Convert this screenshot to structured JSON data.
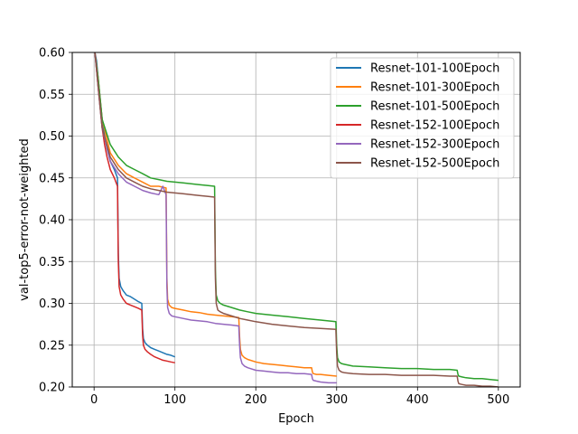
{
  "chart_data": {
    "type": "line",
    "title": "",
    "xlabel": "Epoch",
    "ylabel": "val-top5-error-not-weighted",
    "xlim": [
      -27,
      527
    ],
    "ylim": [
      0.2,
      0.6
    ],
    "xticks": [
      0,
      100,
      200,
      300,
      400,
      500
    ],
    "yticks": [
      0.2,
      0.25,
      0.3,
      0.35,
      0.4,
      0.45,
      0.5,
      0.55,
      0.6
    ],
    "xtick_labels": [
      "0",
      "100",
      "200",
      "300",
      "400",
      "500"
    ],
    "ytick_labels": [
      "0.20",
      "0.25",
      "0.30",
      "0.35",
      "0.40",
      "0.45",
      "0.50",
      "0.55",
      "0.60"
    ],
    "grid": true,
    "legend_position": "top-right",
    "series": [
      {
        "name": "Resnet-101-100Epoch",
        "color": "#1f77b4",
        "x": [
          1,
          3,
          5,
          8,
          10,
          13,
          16,
          20,
          25,
          29,
          30,
          31,
          33,
          36,
          40,
          45,
          50,
          55,
          59,
          60,
          61,
          63,
          66,
          70,
          75,
          80,
          85,
          90,
          95,
          100
        ],
        "y": [
          0.6,
          0.59,
          0.57,
          0.54,
          0.52,
          0.5,
          0.485,
          0.47,
          0.46,
          0.45,
          0.36,
          0.33,
          0.32,
          0.315,
          0.31,
          0.308,
          0.305,
          0.302,
          0.3,
          0.27,
          0.258,
          0.253,
          0.25,
          0.247,
          0.245,
          0.243,
          0.241,
          0.239,
          0.238,
          0.236
        ]
      },
      {
        "name": "Resnet-101-300Epoch",
        "color": "#ff7f0e",
        "x": [
          1,
          5,
          10,
          20,
          30,
          40,
          50,
          60,
          70,
          80,
          89,
          90,
          91,
          93,
          96,
          100,
          110,
          120,
          130,
          140,
          150,
          160,
          170,
          179,
          180,
          181,
          183,
          186,
          190,
          200,
          210,
          220,
          230,
          240,
          250,
          260,
          269,
          270,
          271,
          275,
          280,
          290,
          300
        ],
        "y": [
          0.6,
          0.57,
          0.52,
          0.48,
          0.465,
          0.455,
          0.45,
          0.445,
          0.44,
          0.44,
          0.438,
          0.33,
          0.305,
          0.298,
          0.295,
          0.294,
          0.292,
          0.29,
          0.289,
          0.287,
          0.286,
          0.285,
          0.284,
          0.283,
          0.26,
          0.245,
          0.238,
          0.235,
          0.233,
          0.23,
          0.228,
          0.227,
          0.226,
          0.225,
          0.224,
          0.223,
          0.223,
          0.218,
          0.216,
          0.215,
          0.215,
          0.214,
          0.213
        ]
      },
      {
        "name": "Resnet-101-500Epoch",
        "color": "#2ca02c",
        "x": [
          1,
          5,
          10,
          20,
          30,
          40,
          50,
          60,
          70,
          80,
          90,
          100,
          110,
          120,
          130,
          140,
          149,
          150,
          151,
          153,
          156,
          160,
          170,
          180,
          190,
          200,
          220,
          240,
          260,
          280,
          299,
          300,
          301,
          303,
          306,
          310,
          320,
          340,
          360,
          380,
          400,
          420,
          440,
          449,
          450,
          451,
          455,
          460,
          470,
          480,
          490,
          500
        ],
        "y": [
          0.6,
          0.57,
          0.52,
          0.49,
          0.475,
          0.465,
          0.46,
          0.455,
          0.45,
          0.448,
          0.446,
          0.445,
          0.444,
          0.443,
          0.442,
          0.441,
          0.44,
          0.34,
          0.31,
          0.303,
          0.3,
          0.298,
          0.295,
          0.292,
          0.29,
          0.288,
          0.286,
          0.284,
          0.282,
          0.28,
          0.278,
          0.25,
          0.235,
          0.23,
          0.228,
          0.227,
          0.225,
          0.224,
          0.223,
          0.222,
          0.222,
          0.221,
          0.221,
          0.22,
          0.215,
          0.213,
          0.212,
          0.211,
          0.21,
          0.21,
          0.209,
          0.208
        ]
      },
      {
        "name": "Resnet-152-100Epoch",
        "color": "#d62728",
        "x": [
          1,
          3,
          5,
          8,
          10,
          13,
          16,
          20,
          25,
          29,
          30,
          31,
          33,
          36,
          40,
          45,
          50,
          55,
          59,
          60,
          61,
          63,
          66,
          70,
          75,
          80,
          85,
          90,
          95,
          100
        ],
        "y": [
          0.6,
          0.58,
          0.56,
          0.53,
          0.51,
          0.49,
          0.475,
          0.46,
          0.45,
          0.44,
          0.35,
          0.32,
          0.31,
          0.305,
          0.3,
          0.298,
          0.296,
          0.294,
          0.292,
          0.262,
          0.25,
          0.245,
          0.242,
          0.239,
          0.236,
          0.234,
          0.232,
          0.231,
          0.23,
          0.229
        ]
      },
      {
        "name": "Resnet-152-300Epoch",
        "color": "#9467bd",
        "x": [
          1,
          5,
          10,
          20,
          30,
          40,
          50,
          60,
          70,
          80,
          85,
          89,
          90,
          91,
          93,
          96,
          100,
          110,
          120,
          130,
          140,
          150,
          160,
          170,
          179,
          180,
          181,
          183,
          186,
          190,
          200,
          210,
          220,
          230,
          240,
          250,
          260,
          269,
          270,
          271,
          275,
          280,
          290,
          300
        ],
        "y": [
          0.6,
          0.56,
          0.51,
          0.47,
          0.455,
          0.445,
          0.44,
          0.435,
          0.432,
          0.43,
          0.44,
          0.43,
          0.32,
          0.295,
          0.288,
          0.285,
          0.284,
          0.282,
          0.28,
          0.279,
          0.278,
          0.276,
          0.275,
          0.274,
          0.273,
          0.25,
          0.235,
          0.228,
          0.225,
          0.223,
          0.22,
          0.219,
          0.218,
          0.217,
          0.217,
          0.216,
          0.216,
          0.215,
          0.21,
          0.208,
          0.207,
          0.206,
          0.205,
          0.205
        ]
      },
      {
        "name": "Resnet-152-500Epoch",
        "color": "#8c564b",
        "x": [
          1,
          5,
          10,
          20,
          30,
          40,
          50,
          60,
          70,
          80,
          90,
          100,
          110,
          120,
          130,
          140,
          149,
          150,
          151,
          153,
          156,
          160,
          170,
          180,
          190,
          200,
          220,
          240,
          260,
          280,
          299,
          300,
          301,
          303,
          306,
          310,
          320,
          340,
          360,
          380,
          400,
          420,
          440,
          449,
          450,
          451,
          455,
          460,
          470,
          480,
          490,
          500
        ],
        "y": [
          0.6,
          0.56,
          0.51,
          0.475,
          0.46,
          0.45,
          0.445,
          0.44,
          0.437,
          0.435,
          0.433,
          0.432,
          0.431,
          0.43,
          0.429,
          0.428,
          0.427,
          0.33,
          0.3,
          0.292,
          0.29,
          0.288,
          0.285,
          0.282,
          0.28,
          0.278,
          0.275,
          0.273,
          0.271,
          0.27,
          0.269,
          0.24,
          0.225,
          0.22,
          0.218,
          0.217,
          0.216,
          0.215,
          0.215,
          0.214,
          0.214,
          0.214,
          0.213,
          0.213,
          0.207,
          0.204,
          0.203,
          0.202,
          0.202,
          0.201,
          0.201,
          0.2
        ]
      }
    ]
  }
}
